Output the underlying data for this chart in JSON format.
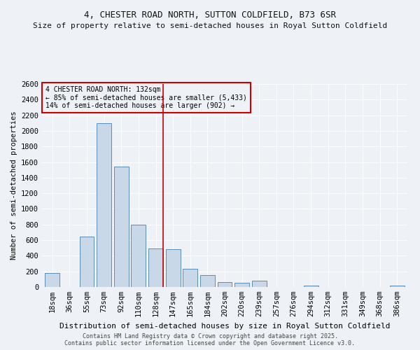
{
  "title1": "4, CHESTER ROAD NORTH, SUTTON COLDFIELD, B73 6SR",
  "title2": "Size of property relative to semi-detached houses in Royal Sutton Coldfield",
  "xlabel": "Distribution of semi-detached houses by size in Royal Sutton Coldfield",
  "ylabel": "Number of semi-detached properties",
  "footer1": "Contains HM Land Registry data © Crown copyright and database right 2025.",
  "footer2": "Contains public sector information licensed under the Open Government Licence v3.0.",
  "categories": [
    "18sqm",
    "36sqm",
    "55sqm",
    "73sqm",
    "92sqm",
    "110sqm",
    "128sqm",
    "147sqm",
    "165sqm",
    "184sqm",
    "202sqm",
    "220sqm",
    "239sqm",
    "257sqm",
    "276sqm",
    "294sqm",
    "312sqm",
    "331sqm",
    "349sqm",
    "368sqm",
    "386sqm"
  ],
  "values": [
    175,
    0,
    650,
    2100,
    1540,
    800,
    490,
    480,
    230,
    155,
    60,
    50,
    80,
    0,
    0,
    15,
    0,
    0,
    0,
    0,
    15
  ],
  "bar_color": "#c8d8e8",
  "bar_edge_color": "#5b8db8",
  "line_color": "#cc0000",
  "line_x_index": 6,
  "annotation_text": "4 CHESTER ROAD NORTH: 132sqm\n← 85% of semi-detached houses are smaller (5,433)\n14% of semi-detached houses are larger (902) →",
  "box_color": "#cc0000",
  "ylim": [
    0,
    2600
  ],
  "yticks": [
    0,
    200,
    400,
    600,
    800,
    1000,
    1200,
    1400,
    1600,
    1800,
    2000,
    2200,
    2400,
    2600
  ],
  "bg_color": "#eef2f7",
  "grid_color": "#ffffff",
  "title1_fontsize": 9,
  "title2_fontsize": 8,
  "xlabel_fontsize": 8,
  "ylabel_fontsize": 7.5,
  "tick_fontsize": 7.5,
  "annotation_fontsize": 7,
  "footer_fontsize": 6
}
